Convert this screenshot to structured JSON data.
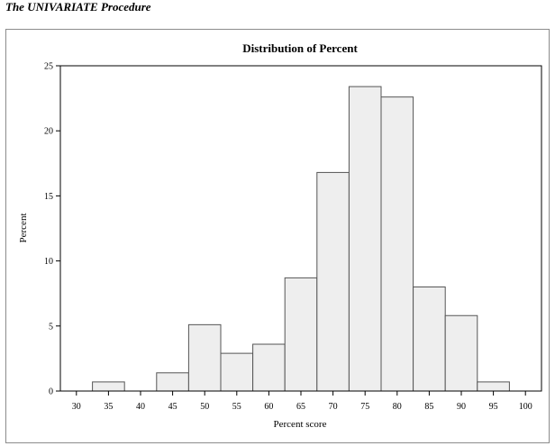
{
  "page": {
    "heading": "The UNIVARIATE Procedure"
  },
  "colors": {
    "bar_fill": "#eeeeee",
    "bar_stroke": "#555555",
    "frame_border": "#8c8c8c",
    "axis": "#000000"
  },
  "chart_data": {
    "type": "bar",
    "title": "Distribution of Percent",
    "xlabel": "Percent score",
    "ylabel": "Percent",
    "x_ticks": [
      30,
      35,
      40,
      45,
      50,
      55,
      60,
      65,
      70,
      75,
      80,
      85,
      90,
      95,
      100
    ],
    "xlim": [
      27.5,
      102.5
    ],
    "y_ticks": [
      0,
      5,
      10,
      15,
      20,
      25
    ],
    "ylim": [
      0,
      25
    ],
    "bin_width": 5,
    "bins": [
      {
        "midpoint": 30,
        "value": 0
      },
      {
        "midpoint": 35,
        "value": 0.7
      },
      {
        "midpoint": 40,
        "value": 0
      },
      {
        "midpoint": 45,
        "value": 1.4
      },
      {
        "midpoint": 50,
        "value": 5.1
      },
      {
        "midpoint": 55,
        "value": 2.9
      },
      {
        "midpoint": 60,
        "value": 3.6
      },
      {
        "midpoint": 65,
        "value": 8.7
      },
      {
        "midpoint": 70,
        "value": 16.8
      },
      {
        "midpoint": 75,
        "value": 23.4
      },
      {
        "midpoint": 80,
        "value": 22.6
      },
      {
        "midpoint": 85,
        "value": 8.0
      },
      {
        "midpoint": 90,
        "value": 5.8
      },
      {
        "midpoint": 95,
        "value": 0.7
      },
      {
        "midpoint": 100,
        "value": 0
      }
    ],
    "grid": false,
    "legend": "none"
  }
}
